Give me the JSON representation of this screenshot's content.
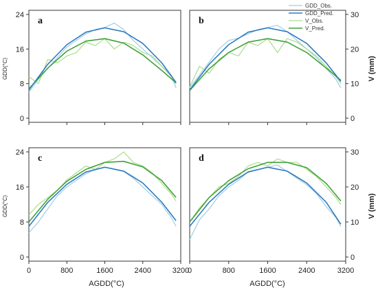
{
  "figure": {
    "xlabel": "AGDD(°C)",
    "ylabel_left": "GDD(°C)",
    "ylabel_right": "V (mm)"
  },
  "legend": {
    "placement": "top-right",
    "items": [
      {
        "label": "GDD_Obs.",
        "color": "#9fcde6"
      },
      {
        "label": "GDD_Pred.",
        "color": "#2e7bbf"
      },
      {
        "label": "V_Obs.",
        "color": "#a9dc8a"
      },
      {
        "label": "V_Pred.",
        "color": "#3ea238"
      }
    ]
  },
  "colors": {
    "gdd_obs": "#9fcde6",
    "gdd_pred": "#2e7bbf",
    "v_obs": "#a9dc8a",
    "v_pred": "#3ea238"
  },
  "chart_data": [
    {
      "type": "line",
      "panel": "a",
      "xlim": [
        0,
        3200
      ],
      "ylim_left": [
        0,
        24
      ],
      "ylim_right": [
        0,
        30
      ],
      "xticks": [
        0,
        800,
        1600,
        2400,
        3200
      ],
      "yticks_left": [
        0,
        8,
        16,
        24
      ],
      "yticks_right": [
        0,
        10,
        20,
        30
      ],
      "series": [
        {
          "name": "GDD_Obs.",
          "axis": "left",
          "x": [
            0,
            200,
            400,
            600,
            800,
            1000,
            1200,
            1400,
            1600,
            1800,
            2000,
            2200,
            2400,
            2600,
            2800,
            3000,
            3100
          ],
          "y": [
            6,
            9,
            11.5,
            14,
            16.5,
            18,
            19.5,
            20.5,
            21,
            22,
            20.5,
            18,
            16,
            14,
            12,
            10,
            7
          ]
        },
        {
          "name": "GDD_Pred.",
          "axis": "left",
          "x": [
            0,
            400,
            800,
            1200,
            1600,
            2000,
            2400,
            2800,
            3100
          ],
          "y": [
            6.5,
            12.5,
            17,
            19.9,
            20.9,
            20,
            17.3,
            12.8,
            8.3
          ]
        },
        {
          "name": "V_Obs.",
          "axis": "right",
          "x": [
            0,
            200,
            400,
            600,
            800,
            1000,
            1200,
            1400,
            1600,
            1800,
            2000,
            2200,
            2400,
            2600,
            2800,
            3000,
            3100
          ],
          "y": [
            12,
            10,
            17,
            16,
            18,
            19,
            22,
            21,
            23,
            20,
            22,
            21,
            19,
            18,
            15,
            12,
            10
          ]
        },
        {
          "name": "V_Pred.",
          "axis": "right",
          "x": [
            0,
            400,
            800,
            1200,
            1600,
            2000,
            2400,
            2800,
            3100
          ],
          "y": [
            8.5,
            14.5,
            19.4,
            22.3,
            23,
            21.7,
            18.3,
            13.8,
            10.2
          ]
        }
      ]
    },
    {
      "type": "line",
      "panel": "b",
      "xlim": [
        0,
        3200
      ],
      "ylim_left": [
        0,
        24
      ],
      "ylim_right": [
        0,
        30
      ],
      "xticks": [
        0,
        800,
        1600,
        2400,
        3200
      ],
      "yticks_left": [
        0,
        8,
        16,
        24
      ],
      "yticks_right": [
        0,
        10,
        20,
        30
      ],
      "series": [
        {
          "name": "GDD_Obs.",
          "axis": "left",
          "x": [
            0,
            200,
            400,
            600,
            800,
            1000,
            1200,
            1400,
            1600,
            1800,
            2000,
            2200,
            2400,
            2600,
            2800,
            3000,
            3100
          ],
          "y": [
            7,
            10,
            13,
            16,
            18,
            18.5,
            19.5,
            20.5,
            21,
            21.5,
            20,
            18,
            16,
            14,
            11.5,
            9,
            7
          ]
        },
        {
          "name": "GDD_Pred.",
          "axis": "left",
          "x": [
            0,
            400,
            800,
            1200,
            1600,
            2000,
            2400,
            2800,
            3100
          ],
          "y": [
            6.5,
            12.5,
            17,
            19.9,
            20.9,
            20,
            17.3,
            12.8,
            8.5
          ]
        },
        {
          "name": "V_Obs.",
          "axis": "right",
          "x": [
            0,
            200,
            400,
            600,
            800,
            1000,
            1200,
            1400,
            1600,
            1800,
            2000,
            2200,
            2400,
            2600,
            2800,
            3000,
            3100
          ],
          "y": [
            9,
            15,
            13,
            17,
            19,
            18,
            22,
            21,
            23,
            19,
            23,
            22,
            20,
            18,
            15,
            12,
            10
          ]
        },
        {
          "name": "V_Pred.",
          "axis": "right",
          "x": [
            0,
            400,
            800,
            1200,
            1600,
            2000,
            2400,
            2800,
            3100
          ],
          "y": [
            8,
            14.3,
            19,
            22,
            23,
            22,
            19,
            14.5,
            11
          ]
        }
      ]
    },
    {
      "type": "line",
      "panel": "c",
      "xlim": [
        0,
        3200
      ],
      "ylim_left": [
        0,
        24
      ],
      "ylim_right": [
        0,
        30
      ],
      "xticks": [
        0,
        800,
        1600,
        2400,
        3200
      ],
      "yticks_left": [
        0,
        8,
        16,
        24
      ],
      "yticks_right": [
        0,
        10,
        20,
        30
      ],
      "series": [
        {
          "name": "GDD_Obs.",
          "axis": "left",
          "x": [
            0,
            200,
            400,
            600,
            800,
            1000,
            1200,
            1400,
            1600,
            1800,
            2000,
            2200,
            2400,
            2600,
            2800,
            3000,
            3100
          ],
          "y": [
            5.5,
            8,
            11,
            14,
            16,
            17.5,
            19,
            20,
            20.5,
            20,
            19.5,
            18,
            16,
            14,
            12,
            9,
            7
          ]
        },
        {
          "name": "GDD_Pred.",
          "axis": "left",
          "x": [
            0,
            400,
            800,
            1200,
            1600,
            2000,
            2400,
            2800,
            3100
          ],
          "y": [
            7,
            12.5,
            16.6,
            19.4,
            20.5,
            19.6,
            16.9,
            12.5,
            8.3
          ]
        },
        {
          "name": "V_Obs.",
          "axis": "right",
          "x": [
            0,
            200,
            400,
            600,
            800,
            1000,
            1200,
            1400,
            1600,
            1800,
            2000,
            2200,
            2400,
            2600,
            2800,
            3000,
            3100
          ],
          "y": [
            12,
            15,
            17,
            19,
            22,
            24,
            26,
            25,
            27,
            28,
            30,
            27,
            26,
            24,
            21,
            18,
            16
          ]
        },
        {
          "name": "V_Pred.",
          "axis": "right",
          "x": [
            0,
            400,
            800,
            1200,
            1600,
            2000,
            2400,
            2800,
            3100
          ],
          "y": [
            10,
            16.5,
            21.6,
            25,
            27,
            27.3,
            25.7,
            21.8,
            17
          ]
        }
      ]
    },
    {
      "type": "line",
      "panel": "d",
      "xlim": [
        0,
        3200
      ],
      "ylim_left": [
        0,
        24
      ],
      "ylim_right": [
        0,
        30
      ],
      "xticks": [
        0,
        800,
        1600,
        2400,
        3200
      ],
      "yticks_left": [
        0,
        8,
        16,
        24
      ],
      "yticks_right": [
        0,
        10,
        20,
        30
      ],
      "series": [
        {
          "name": "GDD_Obs.",
          "axis": "left",
          "x": [
            0,
            200,
            400,
            600,
            800,
            1000,
            1200,
            1400,
            1600,
            1800,
            2000,
            2200,
            2400,
            2600,
            2800,
            3000,
            3100
          ],
          "y": [
            4,
            8.5,
            11,
            14,
            16,
            17.5,
            19.5,
            20,
            20.5,
            21,
            19.5,
            18,
            16.5,
            14.5,
            11.5,
            9,
            7
          ]
        },
        {
          "name": "GDD_Pred.",
          "axis": "left",
          "x": [
            0,
            400,
            800,
            1200,
            1600,
            2000,
            2400,
            2800,
            3100
          ],
          "y": [
            7,
            12.5,
            16.6,
            19.4,
            20.5,
            19.6,
            16.9,
            12.5,
            7.5
          ]
        },
        {
          "name": "V_Obs.",
          "axis": "right",
          "x": [
            0,
            200,
            400,
            600,
            800,
            1000,
            1200,
            1400,
            1600,
            1800,
            2000,
            2200,
            2400,
            2600,
            2800,
            3000,
            3100
          ],
          "y": [
            10,
            14,
            17,
            20,
            21,
            23,
            26,
            27,
            26,
            28,
            27,
            27,
            25,
            23,
            20,
            17,
            15
          ]
        },
        {
          "name": "V_Pred.",
          "axis": "right",
          "x": [
            0,
            400,
            800,
            1200,
            1600,
            2000,
            2400,
            2800,
            3100
          ],
          "y": [
            10,
            17,
            21.8,
            25.2,
            27,
            27,
            25.5,
            21,
            16
          ]
        }
      ]
    }
  ]
}
